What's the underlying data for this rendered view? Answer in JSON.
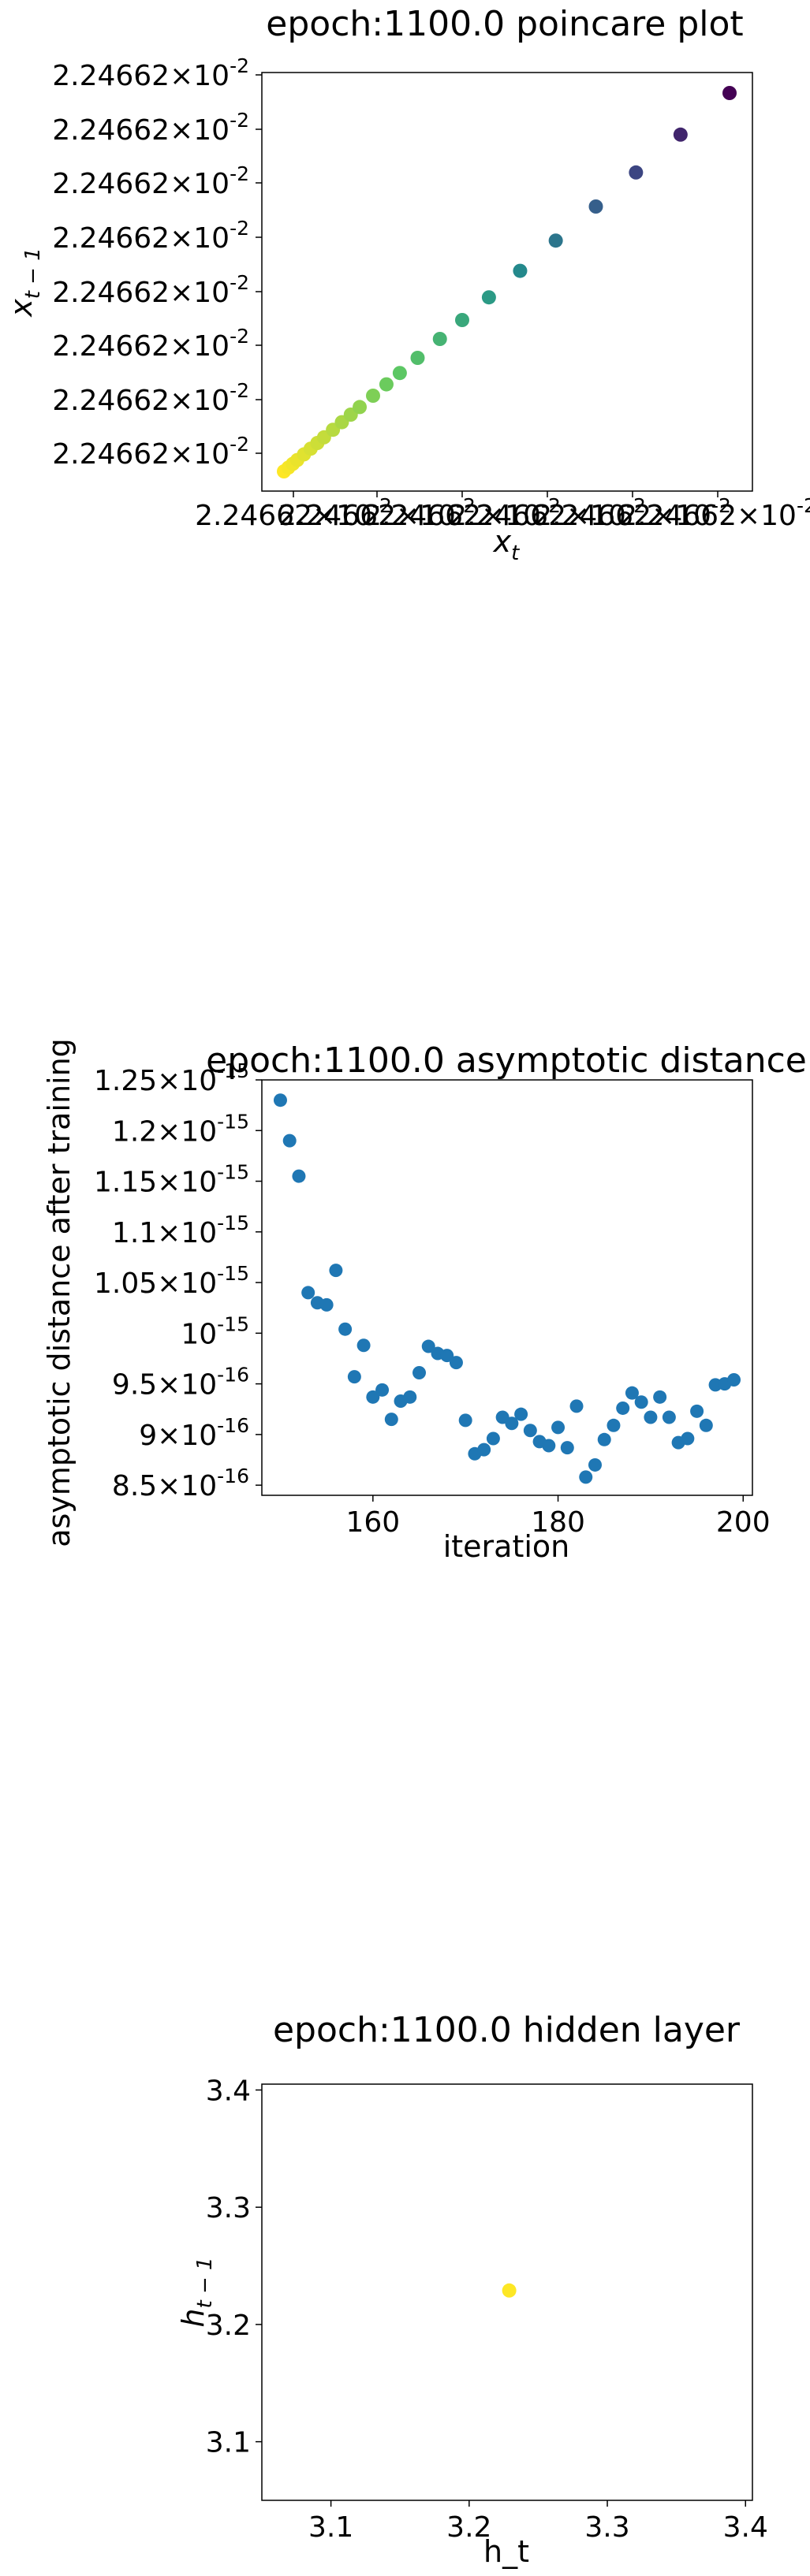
{
  "chart_data": [
    {
      "type": "scatter",
      "title": "epoch:1100.0 poincare plot",
      "xlabel": "x_t",
      "ylabel": "x_{t-1}",
      "ytick_labels": [
        "2.24662",
        "2.24662",
        "2.24662",
        "2.24662",
        "2.24662",
        "2.24662",
        "2.24662",
        "2.24662"
      ],
      "xtick_labels": [
        "2.24662",
        "2.24662",
        "2.24662",
        "2.24662",
        "2.24662",
        "2.24662"
      ],
      "tick_exponent": "-2",
      "colormap": "viridis",
      "points_t": [
        0,
        0.01,
        0.02,
        0.03,
        0.045,
        0.06,
        0.075,
        0.09,
        0.11,
        0.13,
        0.15,
        0.17,
        0.2,
        0.23,
        0.26,
        0.3,
        0.35,
        0.4,
        0.46,
        0.53,
        0.61,
        0.7,
        0.79,
        0.89,
        1.0
      ],
      "grid": false
    },
    {
      "type": "scatter",
      "title": "epoch:1100.0 asymptotic distance",
      "xlabel": "iteration",
      "ylabel": "asymptotic distance after training",
      "xlim": [
        148,
        201
      ],
      "ylim": [
        8.4e-16,
        1.25e-15
      ],
      "xticks": [
        160,
        180,
        200
      ],
      "yticks": [
        {
          "value": 8.5e-16,
          "mantissa": "8.5",
          "exp": "-16"
        },
        {
          "value": 9e-16,
          "mantissa": "9",
          "exp": "-16"
        },
        {
          "value": 9.5e-16,
          "mantissa": "9.5",
          "exp": "-16"
        },
        {
          "value": 1e-15,
          "mantissa": "",
          "exp": "-15"
        },
        {
          "value": 1.05e-15,
          "mantissa": "1.05",
          "exp": "-15"
        },
        {
          "value": 1.1e-15,
          "mantissa": "1.1",
          "exp": "-15"
        },
        {
          "value": 1.15e-15,
          "mantissa": "1.15",
          "exp": "-15"
        },
        {
          "value": 1.2e-15,
          "mantissa": "1.2",
          "exp": "-15"
        },
        {
          "value": 1.25e-15,
          "mantissa": "1.25",
          "exp": "-15"
        }
      ],
      "color": "#1f77b4",
      "x": [
        150,
        151,
        152,
        153,
        154,
        155,
        156,
        157,
        158,
        159,
        160,
        161,
        162,
        163,
        164,
        165,
        166,
        167,
        168,
        169,
        170,
        171,
        172,
        173,
        174,
        175,
        176,
        177,
        178,
        179,
        180,
        181,
        182,
        183,
        184,
        185,
        186,
        187,
        188,
        189,
        190,
        191,
        192,
        193,
        194,
        195,
        196,
        197,
        198,
        199
      ],
      "y": [
        1.23e-15,
        1.19e-15,
        1.155e-15,
        1.04e-15,
        1.03e-15,
        1.028e-15,
        1.062e-15,
        1.004e-15,
        9.57e-16,
        9.88e-16,
        9.37e-16,
        9.44e-16,
        9.15e-16,
        9.33e-16,
        9.37e-16,
        9.61e-16,
        9.87e-16,
        9.8e-16,
        9.78e-16,
        9.71e-16,
        9.14e-16,
        8.81e-16,
        8.85e-16,
        8.96e-16,
        9.17e-16,
        9.11e-16,
        9.2e-16,
        9.04e-16,
        8.93e-16,
        8.89e-16,
        9.07e-16,
        8.87e-16,
        9.28e-16,
        8.58e-16,
        8.7e-16,
        8.95e-16,
        9.09e-16,
        9.26e-16,
        9.41e-16,
        9.32e-16,
        9.17e-16,
        9.37e-16,
        9.17e-16,
        8.92e-16,
        8.96e-16,
        9.23e-16,
        9.09e-16,
        9.49e-16,
        9.5e-16,
        9.54e-16
      ],
      "grid": false
    },
    {
      "type": "scatter",
      "title": "epoch:1100.0 hidden layer",
      "xlabel": "h_t",
      "ylabel": "h_{t-1}",
      "xlim": [
        3.05,
        3.405
      ],
      "ylim": [
        3.05,
        3.405
      ],
      "xticks": [
        3.1,
        3.2,
        3.3,
        3.4
      ],
      "yticks": [
        3.1,
        3.2,
        3.3,
        3.4
      ],
      "tick_labels": [
        "3.1",
        "3.2",
        "3.3",
        "3.4"
      ],
      "x": [
        3.229
      ],
      "y": [
        3.229
      ],
      "color": "#fde725",
      "grid": false
    }
  ]
}
